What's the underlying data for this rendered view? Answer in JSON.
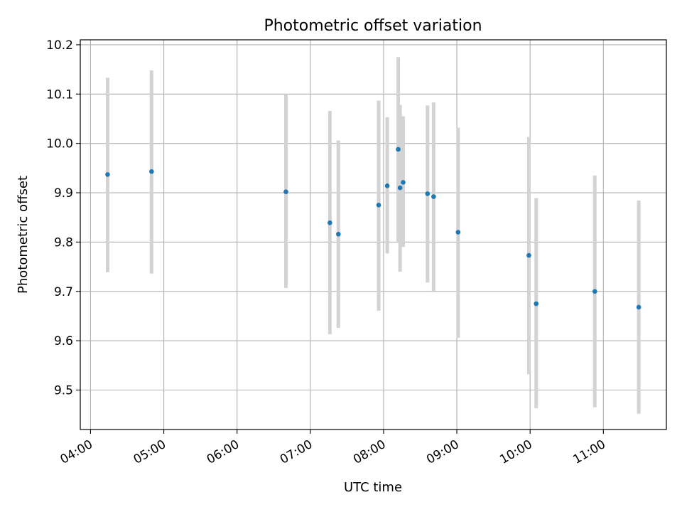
{
  "chart_data": {
    "type": "scatter",
    "title": "Photometric offset variation",
    "xlabel": "UTC time",
    "ylabel": "Photometric offset",
    "x_unit": "hours UTC",
    "xlim": [
      3.86,
      11.86
    ],
    "ylim": [
      9.42,
      10.21
    ],
    "x_ticks": [
      {
        "value": 4,
        "label": "04:00"
      },
      {
        "value": 5,
        "label": "05:00"
      },
      {
        "value": 6,
        "label": "06:00"
      },
      {
        "value": 7,
        "label": "07:00"
      },
      {
        "value": 8,
        "label": "08:00"
      },
      {
        "value": 9,
        "label": "09:00"
      },
      {
        "value": 10,
        "label": "10:00"
      },
      {
        "value": 11,
        "label": "11:00"
      }
    ],
    "y_ticks": [
      {
        "value": 9.5,
        "label": "9.5"
      },
      {
        "value": 9.6,
        "label": "9.6"
      },
      {
        "value": 9.7,
        "label": "9.7"
      },
      {
        "value": 9.8,
        "label": "9.8"
      },
      {
        "value": 9.9,
        "label": "9.9"
      },
      {
        "value": 10.0,
        "label": "10.0"
      },
      {
        "value": 10.1,
        "label": "10.1"
      },
      {
        "value": 10.2,
        "label": "10.2"
      }
    ],
    "grid": true,
    "colors": {
      "point": "#1f77b4",
      "errorbar": "#d3d3d3",
      "grid": "#b0b0b0"
    },
    "points": [
      {
        "x": 4.233,
        "y": 9.937,
        "yerr_low": 9.739,
        "yerr_high": 10.133
      },
      {
        "x": 4.833,
        "y": 9.943,
        "yerr_low": 9.736,
        "yerr_high": 10.148
      },
      {
        "x": 6.667,
        "y": 9.902,
        "yerr_low": 9.707,
        "yerr_high": 10.1
      },
      {
        "x": 7.267,
        "y": 9.839,
        "yerr_low": 9.613,
        "yerr_high": 10.066
      },
      {
        "x": 7.383,
        "y": 9.816,
        "yerr_low": 9.626,
        "yerr_high": 10.006
      },
      {
        "x": 7.933,
        "y": 9.875,
        "yerr_low": 9.661,
        "yerr_high": 10.087
      },
      {
        "x": 8.05,
        "y": 9.914,
        "yerr_low": 9.777,
        "yerr_high": 10.053
      },
      {
        "x": 8.2,
        "y": 9.988,
        "yerr_low": 9.8,
        "yerr_high": 10.175
      },
      {
        "x": 8.225,
        "y": 9.91,
        "yerr_low": 9.74,
        "yerr_high": 10.078
      },
      {
        "x": 8.267,
        "y": 9.921,
        "yerr_low": 9.79,
        "yerr_high": 10.055
      },
      {
        "x": 8.6,
        "y": 9.898,
        "yerr_low": 9.718,
        "yerr_high": 10.077
      },
      {
        "x": 8.683,
        "y": 9.892,
        "yerr_low": 9.7,
        "yerr_high": 10.083
      },
      {
        "x": 9.017,
        "y": 9.82,
        "yerr_low": 9.606,
        "yerr_high": 10.032
      },
      {
        "x": 9.983,
        "y": 9.773,
        "yerr_low": 9.532,
        "yerr_high": 10.013
      },
      {
        "x": 10.083,
        "y": 9.675,
        "yerr_low": 9.463,
        "yerr_high": 9.889
      },
      {
        "x": 10.883,
        "y": 9.7,
        "yerr_low": 9.465,
        "yerr_high": 9.935
      },
      {
        "x": 11.483,
        "y": 9.668,
        "yerr_low": 9.452,
        "yerr_high": 9.884
      }
    ]
  }
}
